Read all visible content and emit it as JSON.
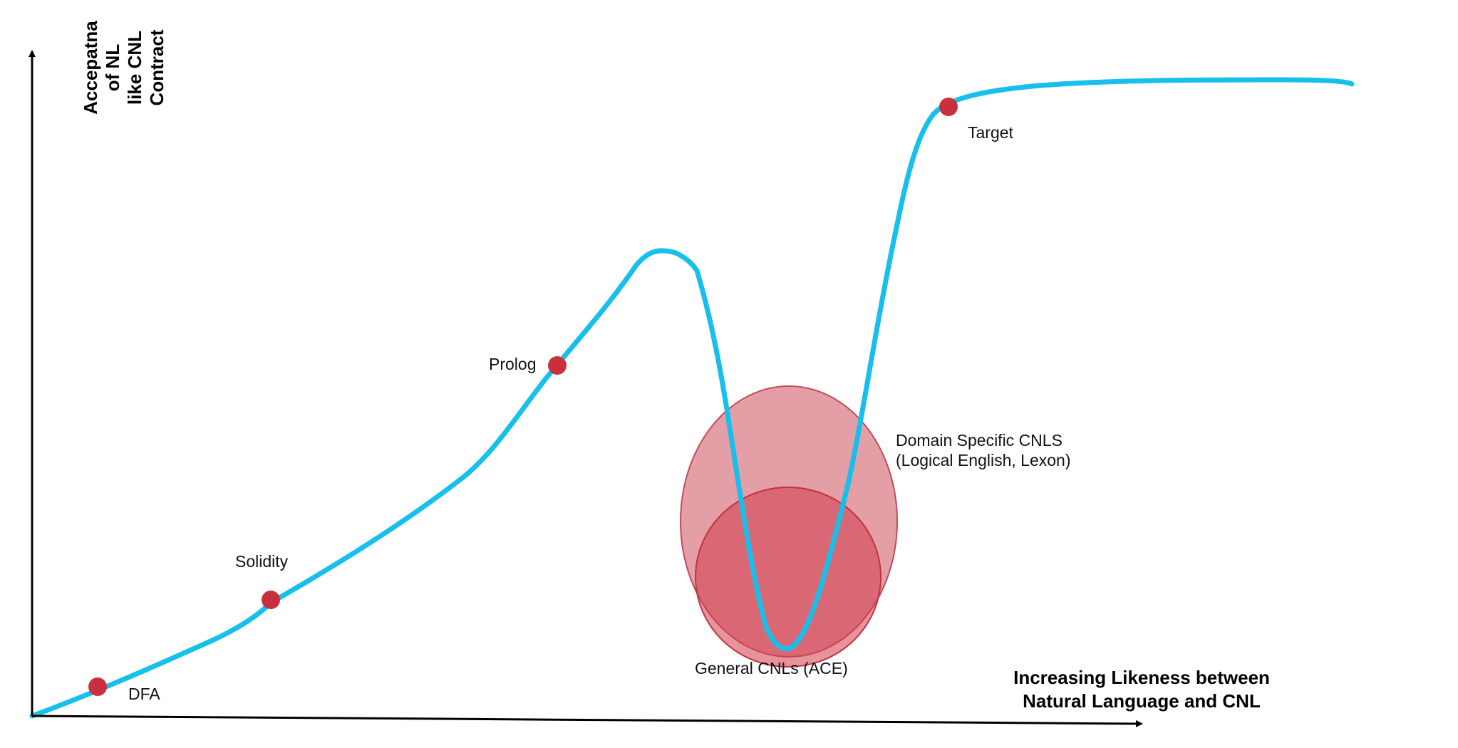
{
  "y_axis": {
    "title_lines": [
      "Accepatna",
      "of NL",
      "like CNL",
      "Contract"
    ]
  },
  "x_axis": {
    "title_lines": [
      "Increasing Likeness between",
      "Natural Language and CNL"
    ]
  },
  "points": [
    {
      "label": "DFA"
    },
    {
      "label": "Solidity"
    },
    {
      "label": "Prolog"
    },
    {
      "label": "Target"
    }
  ],
  "regions": {
    "domain_specific": {
      "line1": "Domain Specific CNLS",
      "line2": "(Logical English, Lexon)"
    },
    "general": {
      "label": "General CNLs (ACE)"
    }
  },
  "colors": {
    "curve": "#17bfec",
    "point": "#c8303d",
    "ellipse_outer": "#d56b76",
    "ellipse_inner": "#d23a4a",
    "axis": "#000000"
  }
}
